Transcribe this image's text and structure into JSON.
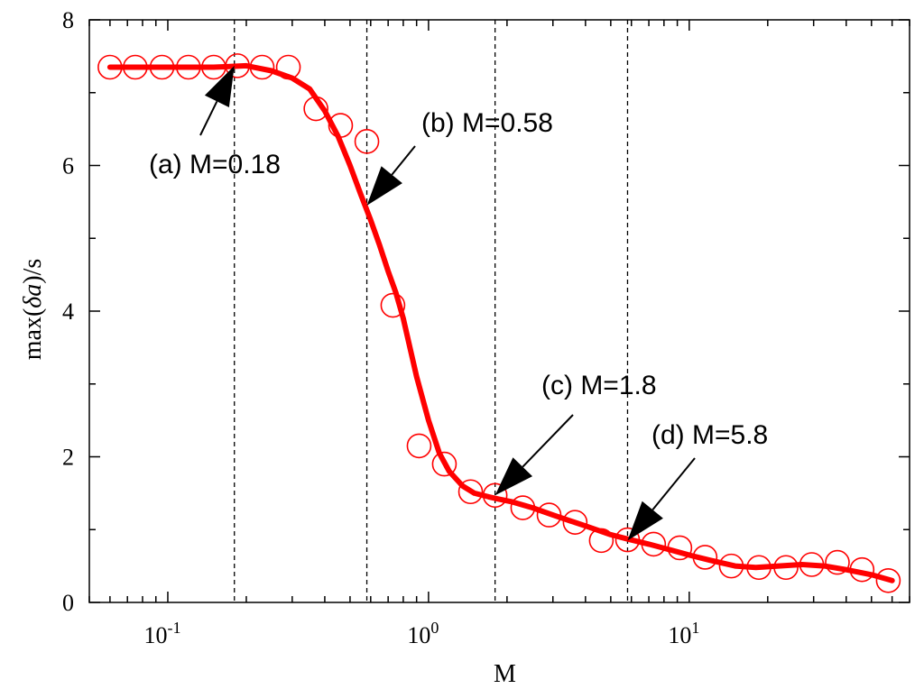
{
  "chart_data": {
    "type": "scatter",
    "xlabel": "M",
    "ylabel": "max(δa)/s",
    "ylabel_parts": [
      "max(",
      "δa",
      ")/s"
    ],
    "xscale": "log",
    "xlim": [
      0.05,
      70
    ],
    "ylim": [
      0,
      8
    ],
    "xticks": [
      {
        "value": 0.1,
        "base": "10",
        "exp": "-1"
      },
      {
        "value": 1,
        "base": "10",
        "exp": "0"
      },
      {
        "value": 10,
        "base": "10",
        "exp": "1"
      }
    ],
    "yticks": [
      {
        "value": 0,
        "label": "0"
      },
      {
        "value": 2,
        "label": "2"
      },
      {
        "value": 4,
        "label": "4"
      },
      {
        "value": 6,
        "label": "6"
      },
      {
        "value": 8,
        "label": "8"
      }
    ],
    "colors": {
      "series": "#ff0000",
      "axes": "#000000",
      "annotation": "#000000"
    },
    "series": [
      {
        "marker": "open-circle",
        "x": [
          0.06,
          0.075,
          0.095,
          0.12,
          0.15,
          0.185,
          0.23,
          0.29,
          0.37,
          0.46,
          0.58,
          0.73,
          0.92,
          1.15,
          1.45,
          1.8,
          2.3,
          2.9,
          3.65,
          4.6,
          5.8,
          7.3,
          9.2,
          11.5,
          14.5,
          18.5,
          23.5,
          29.5,
          37,
          46,
          58
        ],
        "y": [
          7.35,
          7.35,
          7.35,
          7.35,
          7.35,
          7.37,
          7.35,
          7.35,
          6.78,
          6.55,
          6.33,
          4.08,
          2.15,
          1.9,
          1.52,
          1.47,
          1.3,
          1.2,
          1.1,
          0.85,
          0.86,
          0.8,
          0.75,
          0.62,
          0.5,
          0.48,
          0.48,
          0.52,
          0.55,
          0.45,
          0.3
        ]
      },
      {
        "marker": "line",
        "x": [
          0.06,
          0.1,
          0.15,
          0.2,
          0.25,
          0.3,
          0.35,
          0.4,
          0.45,
          0.5,
          0.55,
          0.6,
          0.65,
          0.7,
          0.75,
          0.8,
          0.9,
          1.0,
          1.1,
          1.2,
          1.35,
          1.5,
          1.7,
          1.85,
          2.1,
          2.5,
          3.0,
          3.5,
          4.0,
          5.0,
          5.8,
          7.0,
          8.5,
          10,
          12,
          15,
          18,
          22,
          27,
          33,
          40,
          50,
          60
        ],
        "y": [
          7.35,
          7.35,
          7.35,
          7.37,
          7.3,
          7.2,
          7.05,
          6.75,
          6.4,
          6.0,
          5.6,
          5.25,
          4.9,
          4.55,
          4.25,
          3.9,
          3.1,
          2.5,
          2.05,
          1.8,
          1.6,
          1.5,
          1.45,
          1.42,
          1.38,
          1.3,
          1.2,
          1.12,
          1.05,
          0.93,
          0.87,
          0.8,
          0.72,
          0.65,
          0.58,
          0.5,
          0.48,
          0.5,
          0.52,
          0.5,
          0.45,
          0.38,
          0.3
        ]
      }
    ],
    "vlines": [
      0.18,
      0.58,
      1.8,
      5.8
    ],
    "annotations": [
      {
        "label": "(a) M=0.18",
        "x": 0.18,
        "y": 7.37
      },
      {
        "label": "(b) M=0.58",
        "x": 0.58,
        "y": 5.45
      },
      {
        "label": "(c) M=1.8",
        "x": 1.8,
        "y": 1.47
      },
      {
        "label": "(d) M=5.8",
        "x": 5.8,
        "y": 0.85
      }
    ]
  }
}
